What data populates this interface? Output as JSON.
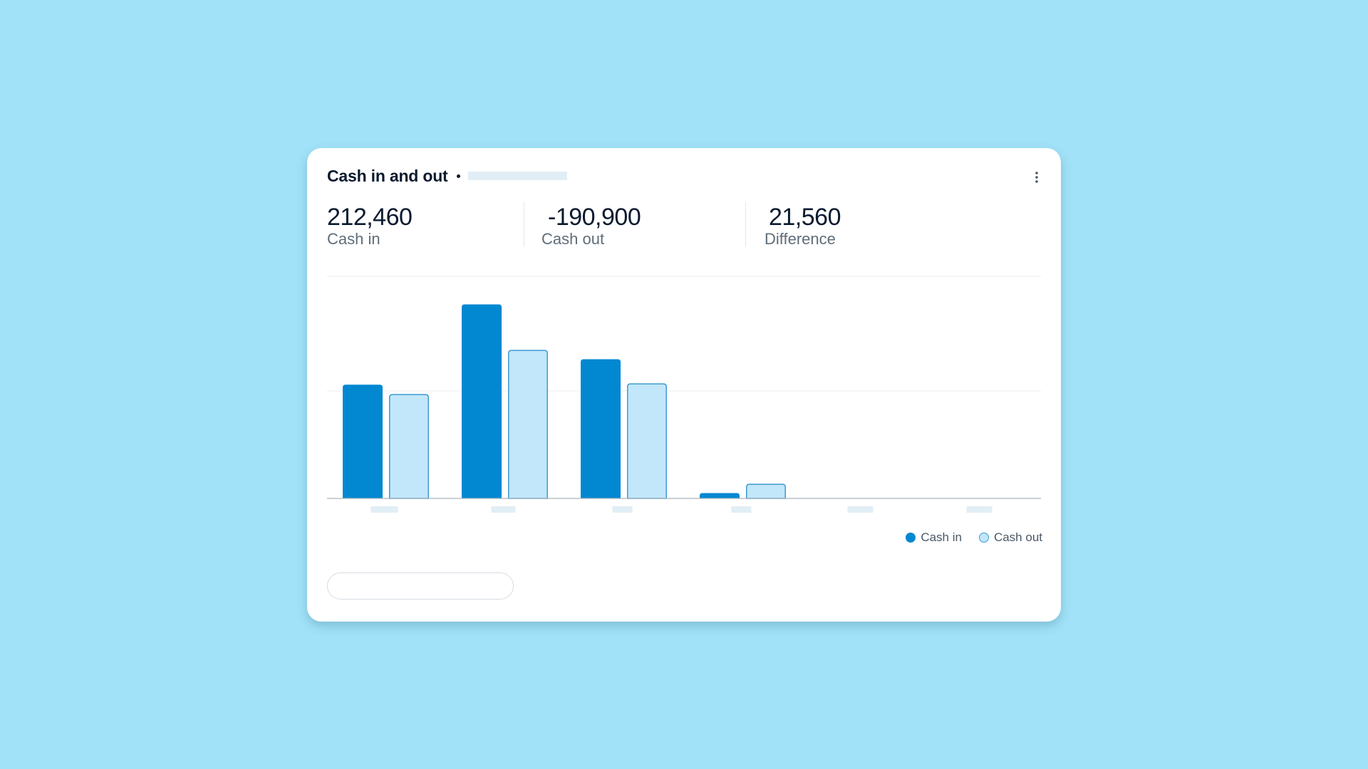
{
  "card": {
    "title": "Cash in and out"
  },
  "summary": {
    "cash_in": {
      "value": "212,460",
      "label": "Cash in"
    },
    "cash_out": {
      "value": "-190,900",
      "label": "Cash out"
    },
    "difference": {
      "value": "21,560",
      "label": "Difference"
    }
  },
  "legend": {
    "cash_in_label": "Cash in",
    "cash_out_label": "Cash out"
  },
  "colors": {
    "background": "#a2e2f8",
    "cash_in": "#0288d1",
    "cash_out_fill": "#c2e6fa",
    "cash_out_stroke": "#3d9bd1",
    "placeholder": "#e1eef6"
  },
  "icons": {
    "more": "more-vertical-icon"
  },
  "chart_data": {
    "type": "bar",
    "title": "",
    "xlabel": "",
    "ylabel": "",
    "categories": [
      "",
      "",
      "",
      "",
      "",
      ""
    ],
    "series": [
      {
        "name": "Cash in",
        "values": [
          85,
          145,
          104,
          4,
          0,
          0
        ]
      },
      {
        "name": "Cash out",
        "values": [
          78,
          111,
          86,
          11,
          0,
          0
        ]
      }
    ],
    "ylim": [
      0,
      166
    ],
    "grid": true,
    "legend": "bottom-right"
  }
}
